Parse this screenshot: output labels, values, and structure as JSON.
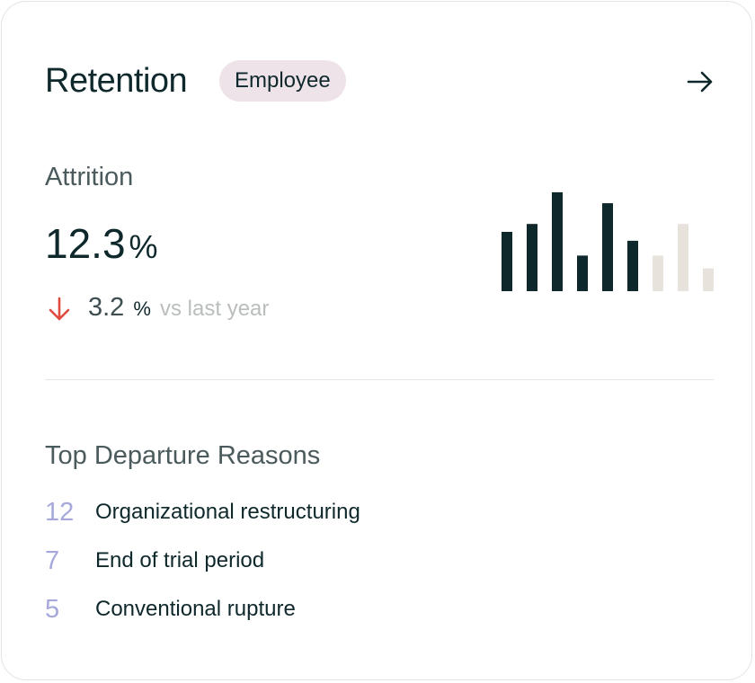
{
  "card": {
    "title": "Retention",
    "badge": "Employee"
  },
  "metric": {
    "label": "Attrition",
    "value": "12.3",
    "unit": "%",
    "delta_value": "3.2",
    "delta_unit": "%",
    "delta_caption": "vs last year",
    "delta_direction": "down",
    "delta_color": "#e04b3f"
  },
  "chart_data": {
    "type": "bar",
    "values": [
      0.6,
      0.68,
      1.0,
      0.36,
      0.89,
      0.51,
      0.36,
      0.68,
      0.23
    ],
    "highlighted_count": 6,
    "colors": {
      "highlighted": "#0e282c",
      "muted": "#e8e2dc"
    }
  },
  "reasons": {
    "title": "Top Departure Reasons",
    "items": [
      {
        "count": "12",
        "label": "Organizational restructuring"
      },
      {
        "count": "7",
        "label": "End of trial period"
      },
      {
        "count": "5",
        "label": "Conventional rupture"
      }
    ]
  },
  "icons": {
    "navigate": "arrow-right-icon",
    "trend": "arrow-down-icon"
  }
}
